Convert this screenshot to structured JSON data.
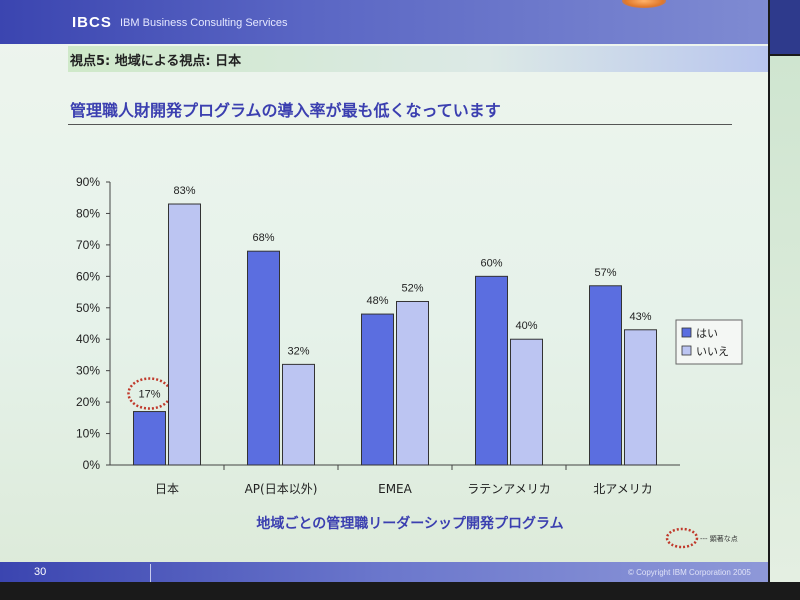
{
  "header": {
    "logo": "IBCS",
    "company": "IBM Business Consulting Services"
  },
  "section_title": "視点5: 地域による視点: 日本",
  "main_title": "管理職人財開発プログラムの導入率が最も低くなっています",
  "footer": {
    "page_number": "30",
    "copyright": "© Copyright IBM Corporation 2005"
  },
  "annotation": {
    "legend_label": "--- 顕著な点"
  },
  "colors": {
    "series_yes": "#5b6ee0",
    "series_no": "#bcc5f2",
    "highlight_circle": "#c0392b",
    "title_blue": "#3b3fb0"
  },
  "chart_data": {
    "type": "bar",
    "title": "",
    "xlabel": "地域ごとの管理職リーダーシップ開発プログラム",
    "ylabel": "",
    "ylim": [
      0,
      90
    ],
    "yticks": [
      "0%",
      "10%",
      "20%",
      "30%",
      "40%",
      "50%",
      "60%",
      "70%",
      "80%",
      "90%"
    ],
    "categories": [
      "日本",
      "AP(日本以外)",
      "EMEA",
      "ラテンアメリカ",
      "北アメリカ"
    ],
    "series": [
      {
        "name": "はい",
        "values": [
          17,
          68,
          48,
          60,
          57
        ],
        "labels": [
          "17%",
          "68%",
          "48%",
          "60%",
          "57%"
        ]
      },
      {
        "name": "いいえ",
        "values": [
          83,
          32,
          52,
          40,
          43
        ],
        "labels": [
          "83%",
          "32%",
          "52%",
          "40%",
          "43%"
        ]
      }
    ],
    "highlighted": {
      "series": 0,
      "category": 0
    },
    "legend_position": "right",
    "grid": false
  }
}
